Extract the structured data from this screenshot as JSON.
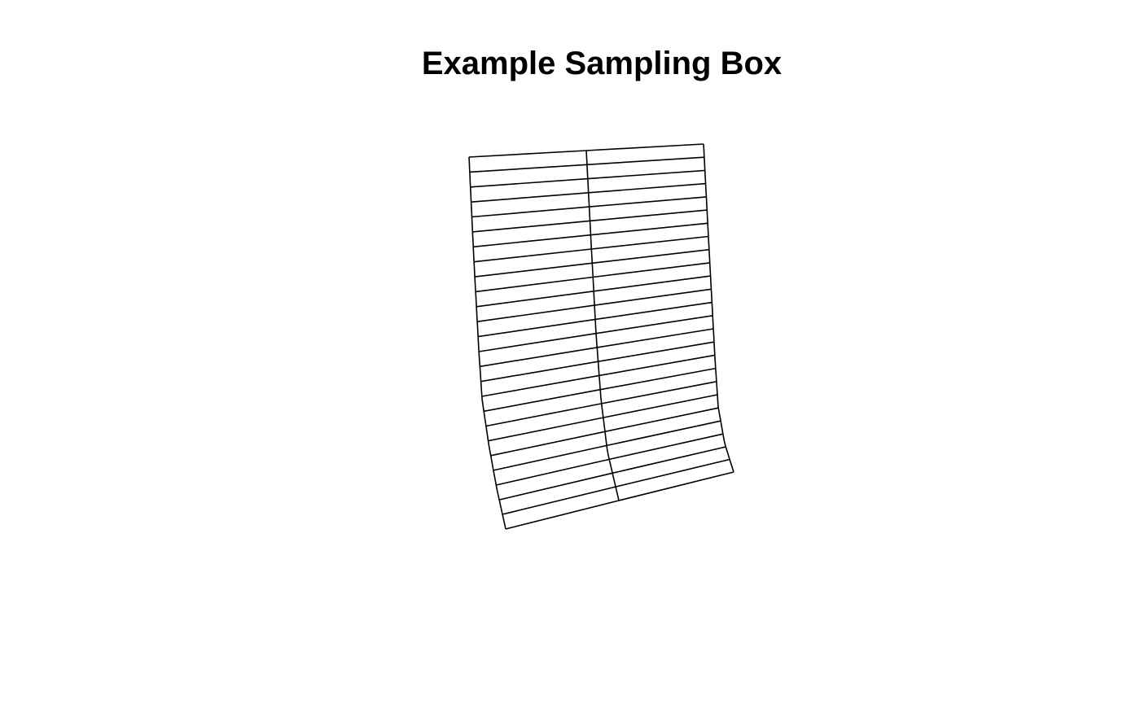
{
  "title": "Example Sampling Box",
  "sampling_box": {
    "rows": 25,
    "columns": 2,
    "line_color": "#000000"
  }
}
